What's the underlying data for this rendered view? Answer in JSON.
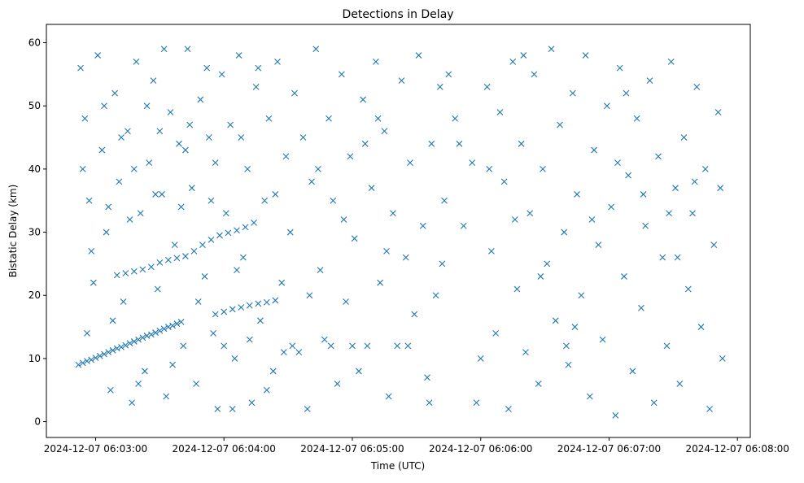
{
  "chart_data": {
    "type": "scatter",
    "title": "Detections in Delay",
    "xlabel": "Time (UTC)",
    "ylabel": "Bistatic Delay (km)",
    "x_units": "seconds after 2024-12-07 06:00:00 UTC",
    "xlim": [
      157,
      486
    ],
    "ylim": [
      -2.5,
      62.9
    ],
    "x_ticks": [
      {
        "value": 180,
        "label": "2024-12-07 06:03:00"
      },
      {
        "value": 240,
        "label": "2024-12-07 06:04:00"
      },
      {
        "value": 300,
        "label": "2024-12-07 06:05:00"
      },
      {
        "value": 360,
        "label": "2024-12-07 06:06:00"
      },
      {
        "value": 420,
        "label": "2024-12-07 06:07:00"
      },
      {
        "value": 480,
        "label": "2024-12-07 06:08:00"
      }
    ],
    "y_ticks": [
      {
        "value": 0,
        "label": "0"
      },
      {
        "value": 10,
        "label": "10"
      },
      {
        "value": 20,
        "label": "20"
      },
      {
        "value": 30,
        "label": "30"
      },
      {
        "value": 40,
        "label": "40"
      },
      {
        "value": 50,
        "label": "50"
      },
      {
        "value": 60,
        "label": "60"
      }
    ],
    "grid": false,
    "marker": "x",
    "color": "#1f77b4",
    "points": [
      [
        172,
        9.0
      ],
      [
        174,
        9.3
      ],
      [
        176,
        9.6
      ],
      [
        178,
        9.8
      ],
      [
        180,
        10.1
      ],
      [
        182,
        10.4
      ],
      [
        184,
        10.7
      ],
      [
        186,
        11.0
      ],
      [
        188,
        11.3
      ],
      [
        190,
        11.6
      ],
      [
        192,
        11.8
      ],
      [
        194,
        12.1
      ],
      [
        196,
        12.4
      ],
      [
        198,
        12.7
      ],
      [
        200,
        13.0
      ],
      [
        202,
        13.3
      ],
      [
        204,
        13.6
      ],
      [
        206,
        13.8
      ],
      [
        208,
        14.1
      ],
      [
        210,
        14.4
      ],
      [
        212,
        14.7
      ],
      [
        214,
        15.0
      ],
      [
        216,
        15.2
      ],
      [
        218,
        15.5
      ],
      [
        220,
        15.8
      ],
      [
        236,
        17.0
      ],
      [
        240,
        17.4
      ],
      [
        244,
        17.8
      ],
      [
        248,
        18.1
      ],
      [
        252,
        18.4
      ],
      [
        256,
        18.7
      ],
      [
        260,
        18.9
      ],
      [
        264,
        19.2
      ],
      [
        190,
        23.2
      ],
      [
        194,
        23.5
      ],
      [
        198,
        23.8
      ],
      [
        202,
        24.1
      ],
      [
        206,
        24.5
      ],
      [
        210,
        25.2
      ],
      [
        214,
        25.6
      ],
      [
        218,
        25.9
      ],
      [
        222,
        26.2
      ],
      [
        226,
        27.0
      ],
      [
        230,
        28.0
      ],
      [
        234,
        28.8
      ],
      [
        238,
        29.5
      ],
      [
        242,
        29.9
      ],
      [
        246,
        30.3
      ],
      [
        250,
        30.8
      ],
      [
        254,
        31.5
      ],
      [
        173,
        56
      ],
      [
        175,
        48
      ],
      [
        177,
        35
      ],
      [
        179,
        22
      ],
      [
        176,
        14
      ],
      [
        181,
        58
      ],
      [
        183,
        43
      ],
      [
        185,
        30
      ],
      [
        187,
        5
      ],
      [
        189,
        52
      ],
      [
        191,
        38
      ],
      [
        193,
        19
      ],
      [
        195,
        46
      ],
      [
        197,
        3
      ],
      [
        199,
        57
      ],
      [
        201,
        33
      ],
      [
        203,
        8
      ],
      [
        205,
        41
      ],
      [
        207,
        54
      ],
      [
        209,
        21
      ],
      [
        211,
        36
      ],
      [
        213,
        4
      ],
      [
        215,
        49
      ],
      [
        217,
        28
      ],
      [
        219,
        44
      ],
      [
        221,
        12
      ],
      [
        223,
        59
      ],
      [
        225,
        37
      ],
      [
        227,
        6
      ],
      [
        229,
        51
      ],
      [
        231,
        23
      ],
      [
        233,
        45
      ],
      [
        235,
        14
      ],
      [
        237,
        2
      ],
      [
        239,
        55
      ],
      [
        241,
        33
      ],
      [
        243,
        47
      ],
      [
        245,
        10
      ],
      [
        247,
        58
      ],
      [
        249,
        26
      ],
      [
        251,
        40
      ],
      [
        253,
        3
      ],
      [
        255,
        53
      ],
      [
        257,
        16
      ],
      [
        259,
        35
      ],
      [
        261,
        48
      ],
      [
        263,
        8
      ],
      [
        265,
        57
      ],
      [
        267,
        22
      ],
      [
        269,
        42
      ],
      [
        174,
        40
      ],
      [
        178,
        27
      ],
      [
        184,
        50
      ],
      [
        188,
        16
      ],
      [
        192,
        45
      ],
      [
        196,
        32
      ],
      [
        200,
        6
      ],
      [
        204,
        50
      ],
      [
        208,
        36
      ],
      [
        212,
        59
      ],
      [
        216,
        9
      ],
      [
        220,
        34
      ],
      [
        224,
        47
      ],
      [
        228,
        19
      ],
      [
        232,
        56
      ],
      [
        236,
        41
      ],
      [
        240,
        12
      ],
      [
        244,
        2
      ],
      [
        248,
        45
      ],
      [
        252,
        13
      ],
      [
        256,
        56
      ],
      [
        260,
        5
      ],
      [
        264,
        36
      ],
      [
        268,
        11
      ],
      [
        186,
        34
      ],
      [
        198,
        40
      ],
      [
        210,
        46
      ],
      [
        222,
        43
      ],
      [
        234,
        35
      ],
      [
        246,
        24
      ],
      [
        271,
        30
      ],
      [
        273,
        52
      ],
      [
        275,
        11
      ],
      [
        277,
        45
      ],
      [
        279,
        2
      ],
      [
        281,
        38
      ],
      [
        283,
        59
      ],
      [
        285,
        24
      ],
      [
        287,
        13
      ],
      [
        289,
        48
      ],
      [
        291,
        35
      ],
      [
        293,
        6
      ],
      [
        295,
        55
      ],
      [
        297,
        19
      ],
      [
        299,
        42
      ],
      [
        301,
        29
      ],
      [
        303,
        8
      ],
      [
        305,
        51
      ],
      [
        307,
        12
      ],
      [
        309,
        37
      ],
      [
        311,
        57
      ],
      [
        313,
        22
      ],
      [
        315,
        46
      ],
      [
        317,
        4
      ],
      [
        319,
        33
      ],
      [
        321,
        12
      ],
      [
        323,
        54
      ],
      [
        325,
        26
      ],
      [
        327,
        41
      ],
      [
        329,
        17
      ],
      [
        331,
        58
      ],
      [
        333,
        31
      ],
      [
        335,
        7
      ],
      [
        337,
        44
      ],
      [
        339,
        20
      ],
      [
        341,
        53
      ],
      [
        343,
        35
      ],
      [
        345,
        55
      ],
      [
        272,
        12
      ],
      [
        280,
        20
      ],
      [
        290,
        12
      ],
      [
        300,
        12
      ],
      [
        306,
        44
      ],
      [
        316,
        27
      ],
      [
        326,
        12
      ],
      [
        336,
        3
      ],
      [
        342,
        25
      ],
      [
        284,
        40
      ],
      [
        296,
        32
      ],
      [
        312,
        48
      ],
      [
        348,
        48
      ],
      [
        350,
        44
      ],
      [
        352,
        31
      ],
      [
        356,
        41
      ],
      [
        358,
        3
      ],
      [
        360,
        10
      ],
      [
        363,
        53
      ],
      [
        365,
        27
      ],
      [
        367,
        14
      ],
      [
        369,
        49
      ],
      [
        371,
        38
      ],
      [
        373,
        2
      ],
      [
        375,
        57
      ],
      [
        377,
        21
      ],
      [
        379,
        44
      ],
      [
        381,
        11
      ],
      [
        383,
        33
      ],
      [
        385,
        55
      ],
      [
        387,
        6
      ],
      [
        389,
        40
      ],
      [
        391,
        25
      ],
      [
        393,
        59
      ],
      [
        395,
        16
      ],
      [
        397,
        47
      ],
      [
        399,
        30
      ],
      [
        401,
        9
      ],
      [
        403,
        52
      ],
      [
        405,
        36
      ],
      [
        407,
        20
      ],
      [
        409,
        58
      ],
      [
        411,
        4
      ],
      [
        413,
        43
      ],
      [
        415,
        28
      ],
      [
        417,
        13
      ],
      [
        419,
        50
      ],
      [
        421,
        34
      ],
      [
        423,
        1
      ],
      [
        425,
        56
      ],
      [
        427,
        23
      ],
      [
        429,
        39
      ],
      [
        431,
        8
      ],
      [
        433,
        48
      ],
      [
        435,
        18
      ],
      [
        437,
        31
      ],
      [
        439,
        54
      ],
      [
        441,
        3
      ],
      [
        443,
        42
      ],
      [
        445,
        26
      ],
      [
        447,
        12
      ],
      [
        449,
        57
      ],
      [
        451,
        37
      ],
      [
        453,
        6
      ],
      [
        455,
        45
      ],
      [
        457,
        21
      ],
      [
        459,
        33
      ],
      [
        461,
        53
      ],
      [
        463,
        15
      ],
      [
        465,
        40
      ],
      [
        467,
        2
      ],
      [
        469,
        28
      ],
      [
        471,
        49
      ],
      [
        473,
        10
      ],
      [
        364,
        40
      ],
      [
        376,
        32
      ],
      [
        388,
        23
      ],
      [
        400,
        12
      ],
      [
        412,
        32
      ],
      [
        424,
        41
      ],
      [
        436,
        36
      ],
      [
        448,
        33
      ],
      [
        460,
        38
      ],
      [
        472,
        37
      ],
      [
        380,
        58
      ],
      [
        404,
        15
      ],
      [
        428,
        52
      ],
      [
        452,
        26
      ]
    ]
  }
}
